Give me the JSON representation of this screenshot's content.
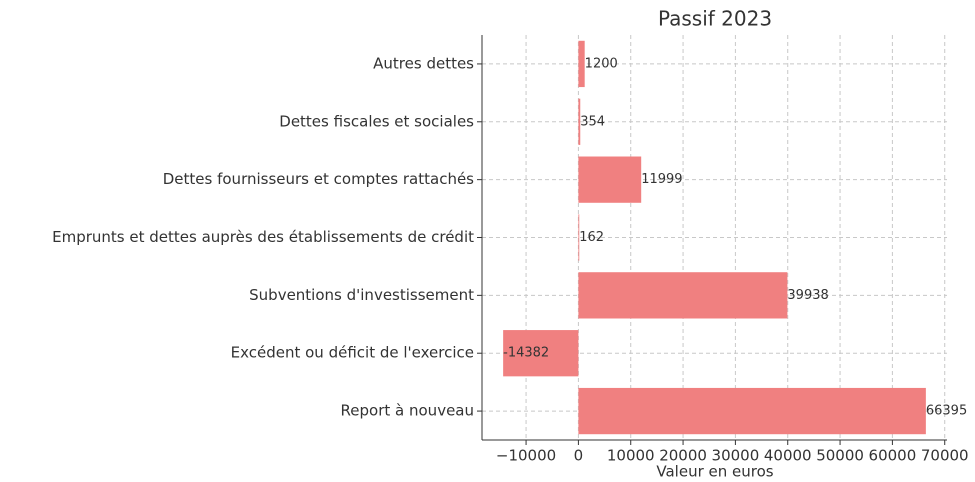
{
  "chart_data": {
    "type": "barh",
    "title": "Passif 2023",
    "xlabel": "Valeur en euros",
    "categories": [
      "Autres dettes",
      "Dettes fiscales et sociales",
      "Dettes fournisseurs et comptes rattachés",
      "Emprunts et dettes auprès des établissements de crédit",
      "Subventions d'investissement",
      "Excédent ou déficit de l'exercice",
      "Report à nouveau"
    ],
    "values": [
      1200,
      354,
      11999,
      162,
      39938,
      -14382,
      66395
    ],
    "color": "#f08080",
    "xlim": [
      -18421,
      70434
    ],
    "xticks": [
      {
        "value": -10000,
        "label": "−10000"
      },
      0,
      10000,
      20000,
      30000,
      40000,
      50000,
      60000,
      70000
    ],
    "grid": true
  }
}
